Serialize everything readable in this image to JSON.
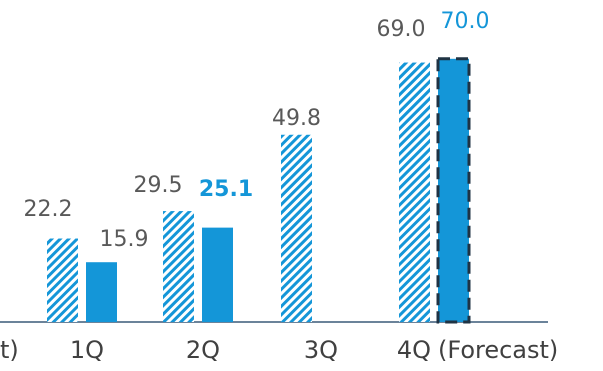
{
  "chart_data": {
    "type": "bar",
    "categories": [
      "1Q",
      "2Q",
      "3Q",
      "4Q"
    ],
    "category_suffix_label": "(Forecast)",
    "leading_cut_label": "t)",
    "series": [
      {
        "values": [
          22.2,
          29.5,
          49.8,
          69.0
        ],
        "labels": [
          "22.2",
          "29.5",
          "49.8",
          "69.0"
        ],
        "style": "hatched",
        "color": "#1496d8"
      },
      {
        "values": [
          15.9,
          25.1,
          null,
          70.0
        ],
        "labels": [
          "15.9",
          "25.1",
          "",
          "70.0"
        ],
        "style": "solid",
        "color": "#1496d8",
        "forecast_index": 3,
        "bold_label_index": 1
      }
    ],
    "ylim": [
      0,
      75
    ],
    "grid": false,
    "legend": "none",
    "colors": {
      "accent": "#1496d8",
      "axis": "#3a5a78",
      "label_gray": "#595959",
      "category_text": "#404040",
      "forecast_border": "#1f3344"
    }
  }
}
